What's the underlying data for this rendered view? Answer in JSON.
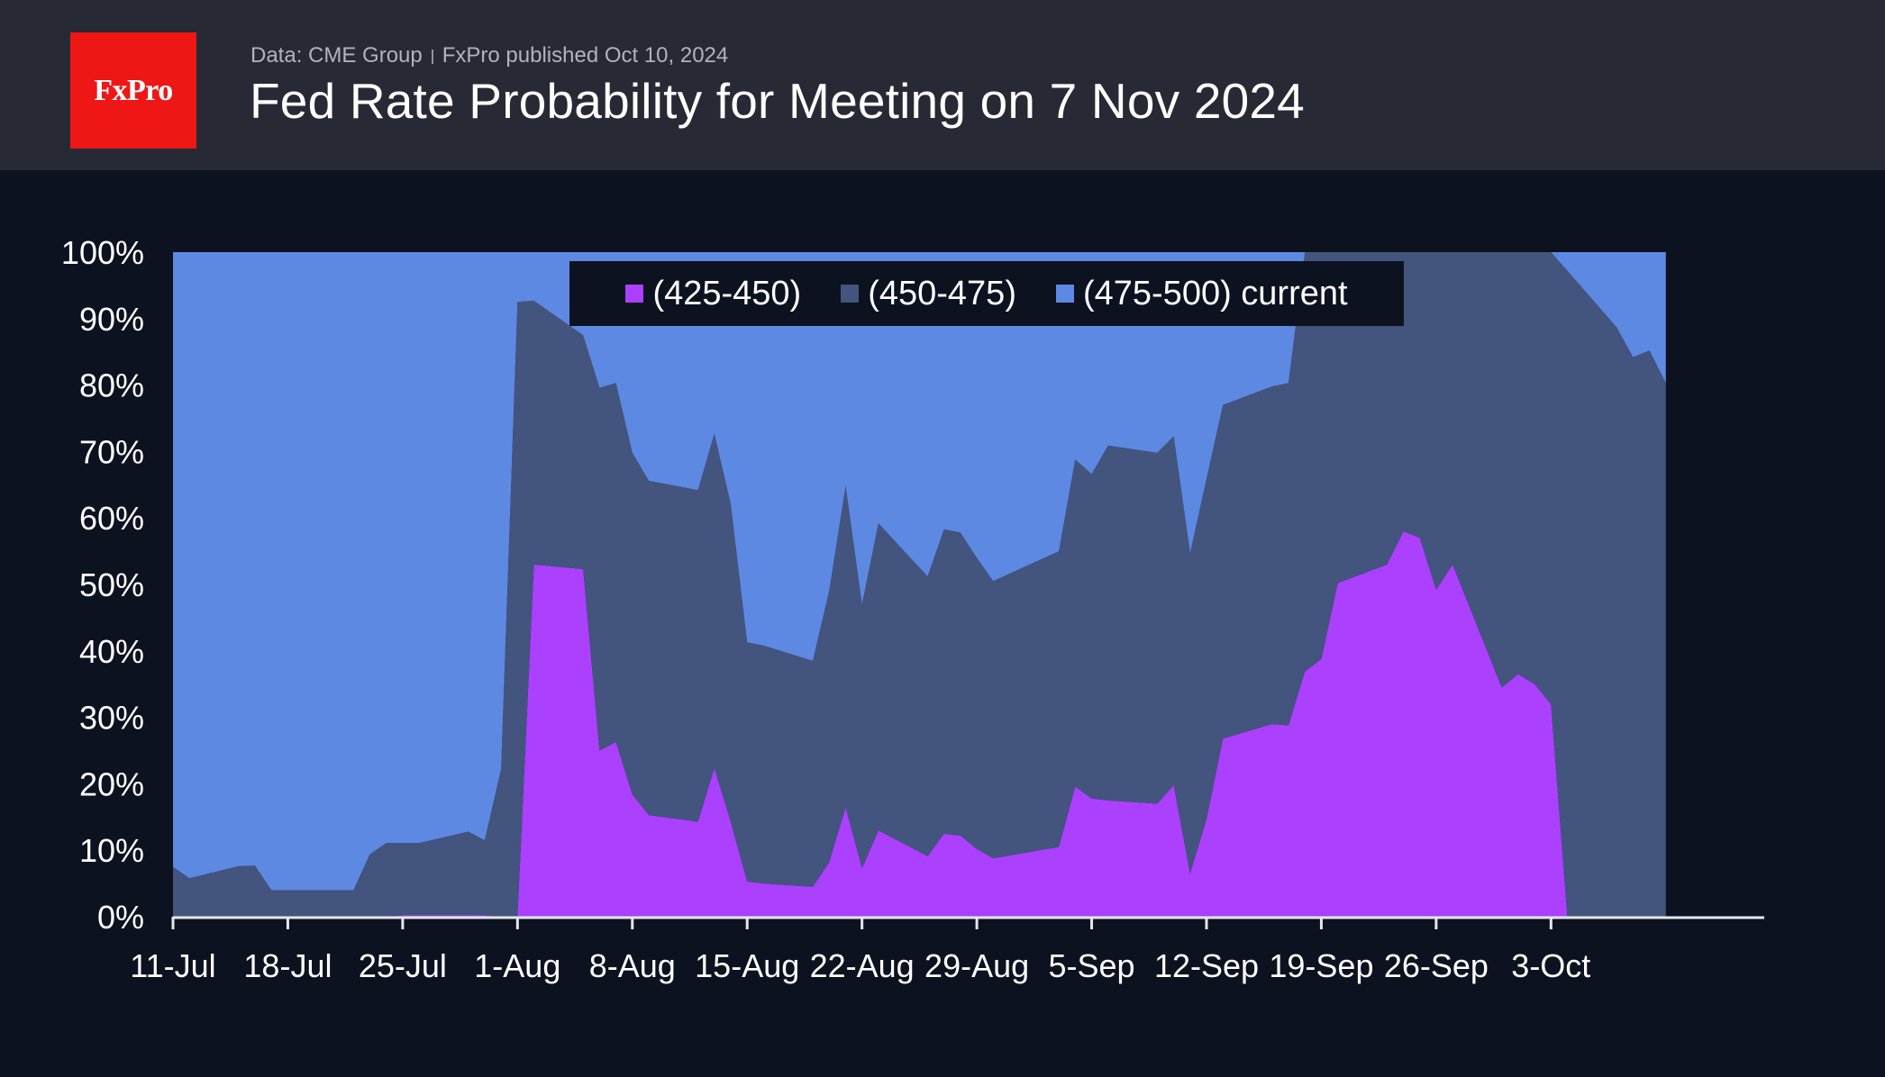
{
  "header": {
    "logo_text": "FxPro",
    "source": "Data: CME Group",
    "published": "FxPro published Oct 10, 2024",
    "title": "Fed Rate Probability for Meeting on 7 Nov 2024"
  },
  "colors": {
    "background": "#0c1220",
    "header_bg": "#272a35",
    "logo_red": "#ef1616"
  },
  "chart_data": {
    "type": "area",
    "stacked": true,
    "title": "Fed Rate Probability for Meeting on 7 Nov 2024",
    "xlabel": "",
    "ylabel": "",
    "ylim": [
      0,
      100
    ],
    "y_ticks": [
      "0%",
      "10%",
      "20%",
      "30%",
      "40%",
      "50%",
      "60%",
      "70%",
      "80%",
      "90%",
      "100%"
    ],
    "x_ticks": [
      "11-Jul",
      "18-Jul",
      "25-Jul",
      "1-Aug",
      "8-Aug",
      "15-Aug",
      "22-Aug",
      "29-Aug",
      "5-Sep",
      "12-Sep",
      "19-Sep",
      "26-Sep",
      "3-Oct"
    ],
    "x_day_start": "11-Jul",
    "x_day_end": "16-Oct",
    "grid": false,
    "legend_position": "top-center",
    "x": [
      "11-Jul",
      "12-Jul",
      "15-Jul",
      "16-Jul",
      "17-Jul",
      "18-Jul",
      "19-Jul",
      "22-Jul",
      "23-Jul",
      "24-Jul",
      "25-Jul",
      "26-Jul",
      "29-Jul",
      "30-Jul",
      "31-Jul",
      "1-Aug",
      "2-Aug",
      "5-Aug",
      "6-Aug",
      "7-Aug",
      "8-Aug",
      "9-Aug",
      "12-Aug",
      "13-Aug",
      "14-Aug",
      "15-Aug",
      "16-Aug",
      "19-Aug",
      "20-Aug",
      "21-Aug",
      "22-Aug",
      "23-Aug",
      "26-Aug",
      "27-Aug",
      "28-Aug",
      "29-Aug",
      "30-Aug",
      "3-Sep",
      "4-Sep",
      "5-Sep",
      "6-Sep",
      "9-Sep",
      "10-Sep",
      "11-Sep",
      "12-Sep",
      "13-Sep",
      "16-Sep",
      "17-Sep",
      "18-Sep",
      "19-Sep",
      "20-Sep",
      "23-Sep",
      "24-Sep",
      "25-Sep",
      "26-Sep",
      "27-Sep",
      "30-Sep",
      "1-Oct",
      "2-Oct",
      "3-Oct",
      "4-Oct",
      "7-Oct",
      "8-Oct",
      "9-Oct",
      "10-Oct"
    ],
    "series": [
      {
        "name": "(425-450)",
        "color": "#ab40ff",
        "values": [
          0,
          0,
          0,
          0,
          0,
          0,
          0,
          0,
          0,
          0,
          0.2,
          0.2,
          0.2,
          0.2,
          0,
          0,
          53,
          52.3,
          25,
          26.3,
          18.4,
          15.3,
          14.3,
          22.4,
          14.3,
          5.3,
          5,
          4.5,
          8.2,
          16.5,
          7.3,
          13,
          9.1,
          12.5,
          12.2,
          10.2,
          8.8,
          10.5,
          19.6,
          17.8,
          17.5,
          17,
          19.8,
          6.5,
          14.7,
          26.8,
          29,
          28.8,
          36.9,
          38.8,
          50.2,
          53,
          58,
          57,
          49.2,
          53,
          34.5,
          36.5,
          35,
          32,
          0,
          0,
          0,
          0,
          0
        ]
      },
      {
        "name": "(450-475)",
        "color": "#43547f",
        "values": [
          7.5,
          5.8,
          7.6,
          7.7,
          4,
          4,
          4,
          4,
          9.4,
          11.1,
          10.9,
          10.9,
          12.6,
          11.3,
          22.2,
          92.5,
          39.7,
          35.2,
          54.6,
          54,
          51.4,
          50.3,
          49.9,
          50.3,
          47.8,
          36,
          35.8,
          34,
          40.8,
          48.3,
          39.7,
          46.2,
          42.1,
          45.8,
          45.6,
          43.8,
          41.7,
          44.5,
          49.2,
          48.8,
          53.4,
          52.8,
          52.5,
          48.2,
          51.2,
          50.2,
          50.8,
          51.5,
          63.1,
          61.2,
          49.8,
          47,
          42,
          43,
          50.8,
          47,
          65.5,
          63.5,
          65,
          68,
          97.2,
          88.7,
          84.2,
          85.2,
          80.3
        ]
      },
      {
        "name": "(475-500) current",
        "color": "#5e89e2",
        "values": [
          92.5,
          94.2,
          92.4,
          92.3,
          96,
          96,
          96,
          96,
          90.6,
          88.9,
          88.9,
          88.9,
          87.2,
          88.5,
          77.8,
          7.5,
          7.3,
          12.5,
          20.4,
          19.7,
          30.2,
          34.4,
          35.8,
          27.3,
          37.9,
          58.7,
          59.2,
          61.5,
          51,
          35.2,
          53,
          40.8,
          48.8,
          41.7,
          42.2,
          46,
          49.5,
          45,
          31.2,
          33.4,
          29.1,
          30.2,
          27.7,
          45.3,
          34.1,
          23,
          20.2,
          19.7,
          0,
          0,
          0,
          0,
          0,
          0,
          0,
          0,
          0,
          0,
          0,
          0,
          2.8,
          11.3,
          15.8,
          14.8,
          19.7
        ]
      }
    ]
  }
}
